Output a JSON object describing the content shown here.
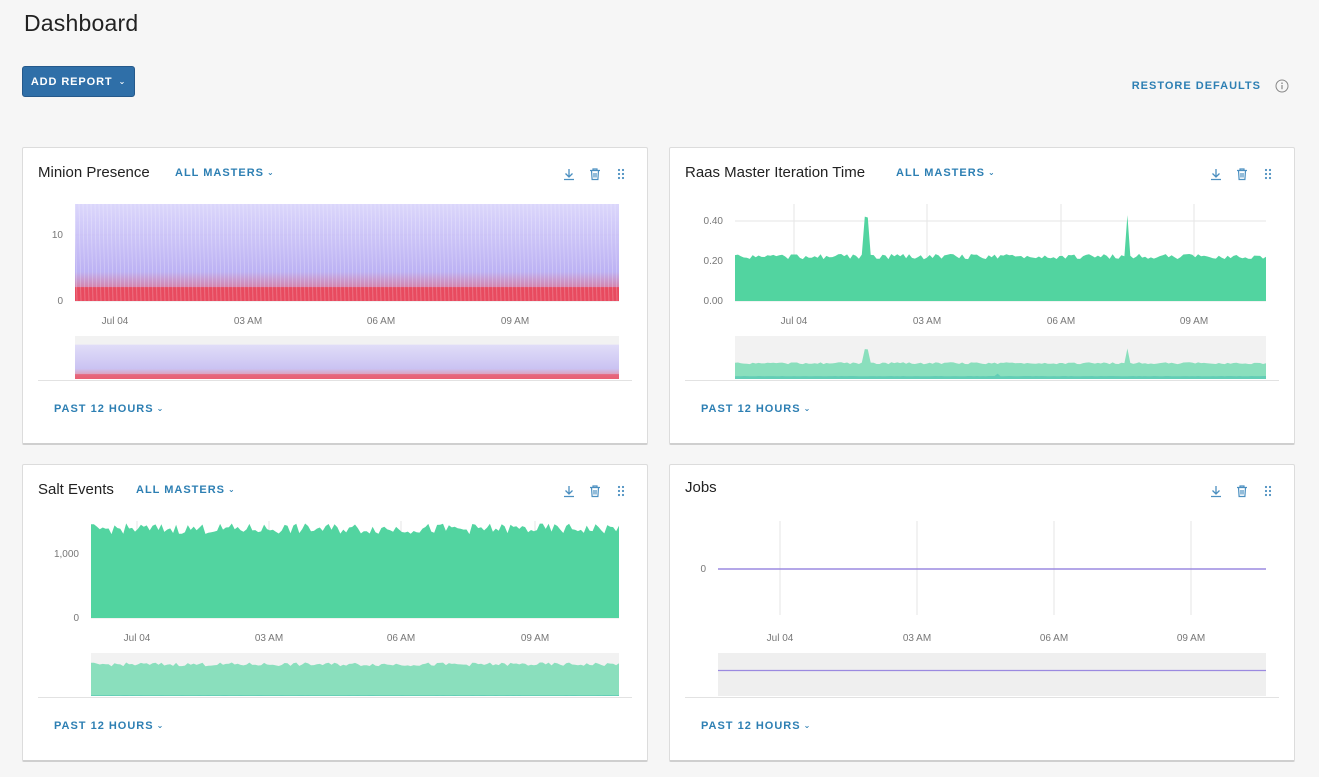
{
  "page": {
    "title": "Dashboard"
  },
  "toolbar": {
    "add_report_label": "ADD REPORT",
    "restore_defaults_label": "RESTORE DEFAULTS"
  },
  "icons": [
    "info-icon",
    "download-icon",
    "trash-icon",
    "drag-handle-icon",
    "chevron-down-icon"
  ],
  "colors": {
    "accent": "#2d7fb3",
    "button": "#2f6fa8",
    "series_green": "#52d4a0",
    "series_blue": "#47a8d6",
    "series_purple": "#9b8ae0",
    "series_red": "#e84a5f"
  },
  "cards": [
    {
      "title": "Minion Presence",
      "filter": "ALL MASTERS",
      "range": "PAST 12 HOURS"
    },
    {
      "title": "Raas Master Iteration Time",
      "filter": "ALL MASTERS",
      "range": "PAST 12 HOURS"
    },
    {
      "title": "Salt Events",
      "filter": "ALL MASTERS",
      "range": "PAST 12 HOURS"
    },
    {
      "title": "Jobs",
      "range": "PAST 12 HOURS"
    }
  ],
  "chart_data": [
    {
      "chart": "Minion Presence",
      "type": "area",
      "x": [
        "Jul 04",
        "03 AM",
        "06 AM",
        "09 AM"
      ],
      "yticks": [
        "10",
        "0"
      ],
      "ylim": [
        0,
        14
      ],
      "series": [
        {
          "color": "#e84a5f",
          "level": 2
        },
        {
          "color": "#a99cf0",
          "level": 14
        }
      ],
      "grid": true,
      "brush": true
    },
    {
      "chart": "Raas Master Iteration Time",
      "type": "area",
      "x": [
        "Jul 04",
        "03 AM",
        "06 AM",
        "09 AM"
      ],
      "yticks": [
        "0.40",
        "0.20",
        "0.00"
      ],
      "ylim": [
        0,
        0.48
      ],
      "series": [
        {
          "color": "#52d4a0",
          "level": 0.22
        },
        {
          "color": "#47a8d6",
          "level": 0.04
        }
      ],
      "grid": true,
      "brush": true
    },
    {
      "chart": "Salt Events",
      "type": "area",
      "x": [
        "Jul 04",
        "03 AM",
        "06 AM",
        "09 AM"
      ],
      "yticks": [
        "1,000",
        "0"
      ],
      "ylim": [
        0,
        1500
      ],
      "series": [
        {
          "color": "#52d4a0",
          "level": 1380
        },
        {
          "color": "#47a8d6",
          "level": 40
        }
      ],
      "grid": true,
      "brush": true
    },
    {
      "chart": "Jobs",
      "type": "line",
      "x": [
        "Jul 04",
        "03 AM",
        "06 AM",
        "09 AM"
      ],
      "yticks": [
        "0"
      ],
      "series": [
        {
          "color": "#9b8ae0",
          "values": [
            0,
            0,
            0,
            0
          ]
        }
      ],
      "grid": true,
      "brush": true
    }
  ]
}
